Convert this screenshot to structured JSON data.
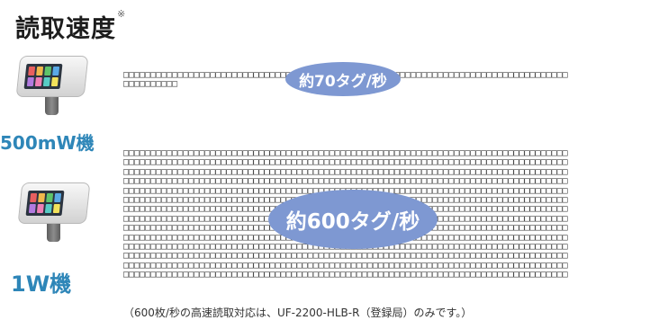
{
  "section": {
    "title": "読取速度",
    "footnote_mark": "※"
  },
  "devices": [
    {
      "label": "500mW機",
      "speed": "約70タグ/秒"
    },
    {
      "label": "1W機",
      "speed": "約600タグ/秒"
    }
  ],
  "note": "（600枚/秒の高速読取対応は、UF-2200-HLB-R（登録局）のみです。）",
  "colors": {
    "label_blue": "#2e86b8",
    "bubble": "#7e98d2"
  }
}
